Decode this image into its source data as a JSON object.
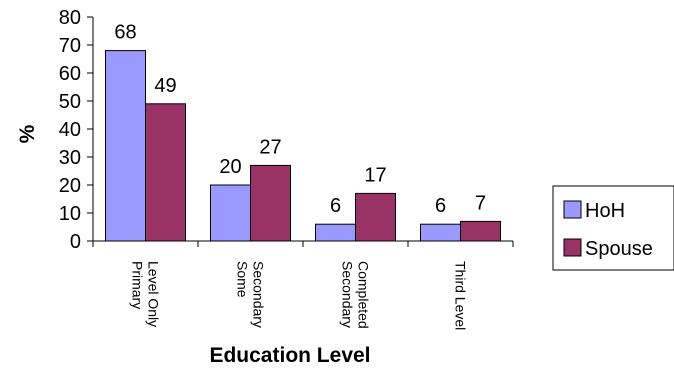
{
  "chart_data": {
    "type": "bar",
    "categories": [
      [
        "Primary",
        "Level Only"
      ],
      [
        "Some",
        "Secondary"
      ],
      [
        "Secondary",
        "Completed"
      ],
      [
        "Third Level"
      ]
    ],
    "series": [
      {
        "name": "HoH",
        "values": [
          68,
          20,
          6,
          6
        ],
        "color": "#9999FF"
      },
      {
        "name": "Spouse",
        "values": [
          49,
          27,
          17,
          7
        ],
        "color": "#993366"
      }
    ],
    "xlabel": "Education Level",
    "ylabel": "%",
    "ylim": [
      0,
      80
    ],
    "yticks": [
      0,
      10,
      20,
      30,
      40,
      50,
      60,
      70,
      80
    ],
    "data_labels": true,
    "grid": false,
    "legend_position": "right"
  }
}
